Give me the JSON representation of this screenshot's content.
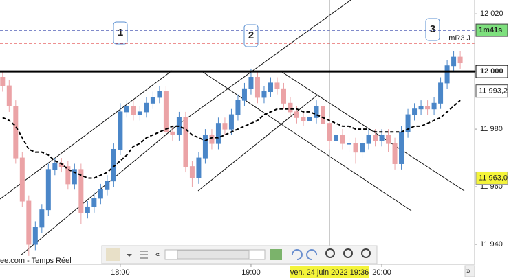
{
  "chart_data": {
    "type": "candlestick",
    "x": [
      17.1,
      17.15,
      17.2,
      17.25,
      17.3,
      17.35,
      17.4,
      17.45,
      17.5,
      17.55,
      17.6,
      17.65,
      17.7,
      17.75,
      17.8,
      17.85,
      17.9,
      17.95,
      18.0,
      18.05,
      18.1,
      18.15,
      18.2,
      18.25,
      18.3,
      18.35,
      18.4,
      18.45,
      18.5,
      18.55,
      18.6,
      18.65,
      18.7,
      18.75,
      18.8,
      18.85,
      18.9,
      18.95,
      19.0,
      19.05,
      19.1,
      19.15,
      19.2,
      19.25,
      19.3,
      19.35,
      19.4,
      19.45,
      19.5,
      19.55,
      19.6,
      19.65,
      19.7,
      19.75,
      19.8,
      19.85,
      19.9,
      19.95,
      20.0,
      20.05,
      20.1,
      20.15,
      20.2,
      20.25,
      20.3,
      20.35,
      20.4,
      20.45,
      20.5,
      20.55,
      20.6
    ],
    "open": [
      11998,
      11995,
      11988,
      11970,
      11955,
      11940,
      11946,
      11952,
      11966,
      11968,
      11967,
      11961,
      11966,
      11951,
      11953,
      11956,
      11959,
      11962,
      11973,
      11986,
      11988,
      11985,
      11986,
      11989,
      11991,
      11993,
      11979,
      11978,
      11984,
      11967,
      11963,
      11970,
      11978,
      11975,
      11982,
      11980,
      11985,
      11990,
      11994,
      11998,
      11991,
      11993,
      11996,
      11994,
      11989,
      11986,
      11984,
      11983,
      11984,
      11988,
      11982,
      11976,
      11978,
      11975,
      11975,
      11972,
      11975,
      11978,
      11976,
      11978,
      11975,
      11968,
      11979,
      11985,
      11987,
      11988,
      11987,
      11989,
      11996,
      12002,
      12005
    ],
    "high": [
      12000,
      11997,
      11990,
      11972,
      11957,
      11948,
      11954,
      11968,
      11970,
      11970,
      11969,
      11968,
      11968,
      11955,
      11958,
      11961,
      11964,
      11975,
      11989,
      11990,
      11990,
      11988,
      11991,
      11993,
      11995,
      11995,
      11981,
      11986,
      11986,
      11969,
      11972,
      11980,
      11980,
      11984,
      11984,
      11987,
      11992,
      11996,
      12001,
      12000,
      11995,
      11998,
      11998,
      11996,
      11991,
      11988,
      11986,
      11986,
      11990,
      11990,
      11984,
      11980,
      11980,
      11977,
      11977,
      11977,
      11980,
      11980,
      11980,
      11980,
      11977,
      11981,
      11987,
      11989,
      11990,
      11990,
      11991,
      11998,
      12004,
      12007,
      12007
    ],
    "low": [
      11993,
      11986,
      11968,
      11953,
      11936,
      11938,
      11944,
      11950,
      11964,
      11965,
      11959,
      11959,
      11947,
      11949,
      11951,
      11954,
      11957,
      11960,
      11971,
      11984,
      11983,
      11983,
      11984,
      11987,
      11989,
      11977,
      11976,
      11976,
      11965,
      11960,
      11961,
      11968,
      11973,
      11973,
      11978,
      11978,
      11983,
      11988,
      11992,
      11989,
      11989,
      11991,
      11992,
      11987,
      11984,
      11982,
      11981,
      11981,
      11982,
      11980,
      11973,
      11974,
      11973,
      11972,
      11968,
      11970,
      11973,
      11974,
      11974,
      11972,
      11966,
      11966,
      11977,
      11983,
      11985,
      11985,
      11985,
      11987,
      11994,
      12000,
      12001
    ],
    "close": [
      11995,
      11988,
      11970,
      11955,
      11940,
      11946,
      11952,
      11966,
      11968,
      11967,
      11961,
      11966,
      11951,
      11953,
      11956,
      11959,
      11962,
      11973,
      11986,
      11988,
      11985,
      11986,
      11989,
      11991,
      11993,
      11979,
      11978,
      11984,
      11967,
      11963,
      11970,
      11978,
      11975,
      11982,
      11980,
      11985,
      11990,
      11994,
      11998,
      11991,
      11993,
      11996,
      11994,
      11989,
      11986,
      11984,
      11983,
      11984,
      11988,
      11982,
      11976,
      11978,
      11975,
      11975,
      11972,
      11975,
      11978,
      11976,
      11978,
      11975,
      11968,
      11979,
      11985,
      11987,
      11988,
      11987,
      11989,
      11996,
      12002,
      12005,
      12003
    ],
    "moving_average": [
      11984,
      11983,
      11981,
      11977,
      11973,
      11972,
      11972,
      11971,
      11969,
      11968,
      11966,
      11965,
      11964,
      11963,
      11963,
      11964,
      11965,
      11967,
      11969,
      11971,
      11974,
      11975,
      11977,
      11978,
      11979,
      11980,
      11981,
      11981,
      11980,
      11978,
      11977,
      11976,
      11977,
      11977,
      11978,
      11979,
      11980,
      11981,
      11982,
      11983,
      11985,
      11986,
      11987,
      11987,
      11987,
      11987,
      11986,
      11986,
      11985,
      11984,
      11983,
      11982,
      11981,
      11981,
      11980,
      11980,
      11980,
      11979,
      11979,
      11979,
      11979,
      11979,
      11980,
      11981,
      11981,
      11982,
      11983,
      11984,
      11986,
      11988,
      11990
    ],
    "up_color": "#4a86c8",
    "down_color": "#eba3a6",
    "xlim": [
      17.08,
      20.71
    ],
    "xticks": [
      {
        "value": 18,
        "label": "18:00"
      },
      {
        "value": 19,
        "label": "19:00"
      },
      {
        "value": 20,
        "label": "20:00"
      }
    ],
    "ylim": [
      11933.1,
      12024.8
    ],
    "yticks": [
      {
        "value": 12020,
        "label": "12 020"
      },
      {
        "value": 12000,
        "label": "12 000"
      },
      {
        "value": 11980,
        "label": "11 980"
      },
      {
        "value": 11960,
        "label": "11 960"
      },
      {
        "value": 11940,
        "label": "11 940"
      }
    ],
    "hlines": [
      {
        "value": 12014.3,
        "label": "1m41s",
        "color": "#3344aa",
        "style": "dashed",
        "label_bg": "#7ee07e"
      },
      {
        "value": 12009.8,
        "label": "mR3 J",
        "color": "#dd2222",
        "style": "dashed"
      },
      {
        "value": 11993.2,
        "label": "11 993,2",
        "color": "#000000",
        "style": "none",
        "label_bg": "#ffffff"
      },
      {
        "value": 11963.0,
        "label": "11 963,0",
        "color": "#aaaaaa",
        "style": "solid",
        "label_bg": "#f4f43a"
      }
    ],
    "cursor": {
      "x": 19.6,
      "label": "ven. 24 juin 2022 19:36"
    },
    "annotations": [
      "1",
      "2",
      "3"
    ],
    "source": "ee.com - Temps Réel"
  }
}
